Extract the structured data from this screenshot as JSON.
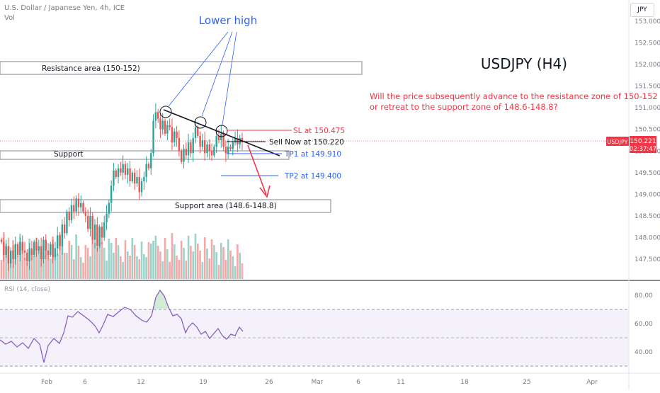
{
  "header": {
    "symbol_line": "U.S. Dollar / Japanese Yen, 4h, ICE",
    "volume_label": "Vol",
    "currency_button": "JPY"
  },
  "annotations": {
    "lower_high": "Lower high",
    "title": "USDJPY (H4)",
    "question_line1": "Will the price subsequently advance to the resistance zone of 150-152",
    "question_line2": "or retreat to the support zone of 148.6-148.8?",
    "resistance_area": "Resistance area (150-152)",
    "support": "Support",
    "support_area": "Support area (148.6-148.8)",
    "sl": "SL at 150.475",
    "sell_now": "Sell Now at 150.220",
    "tp1": "TP1 at 149.910",
    "tp2": "TP2 at 149.400"
  },
  "price_tag": {
    "symbol": "USDJPY",
    "price": "150.221",
    "countdown": "02:37:47"
  },
  "colors": {
    "up": "#26a69a",
    "down": "#ef5350",
    "vol_up": "#9ad3cc",
    "vol_down": "#f4a9a7",
    "blue": "#2962ff",
    "red": "#f23645",
    "rsi_line": "#7e57c2",
    "rsi_fill": "#ede7f6"
  },
  "rsi": {
    "label": "RSI (14, close)",
    "ticks": [
      "80.00",
      "60.00",
      "40.00"
    ]
  },
  "chart_data": {
    "type": "candlestick",
    "price_axis": {
      "ylim": [
        147.2,
        153.2
      ],
      "ticks": [
        "153.000",
        "152.500",
        "152.000",
        "151.500",
        "151.000",
        "150.500",
        "150.000",
        "149.500",
        "149.000",
        "148.500",
        "148.000",
        "147.500"
      ]
    },
    "x_axis": {
      "ticks": [
        "Feb",
        "6",
        "12",
        "19",
        "26",
        "Mar",
        "6",
        "11",
        "18",
        "25",
        "Apr"
      ]
    },
    "levels": {
      "resistance_area": [
        150,
        152
      ],
      "support_area": [
        148.6,
        148.8
      ],
      "sl": 150.475,
      "sell_now": 150.22,
      "tp1": 149.91,
      "tp2": 149.4,
      "last_price": 150.221
    },
    "close": [
      147.9,
      147.6,
      147.8,
      147.4,
      147.7,
      147.5,
      147.85,
      147.6,
      147.9,
      147.7,
      147.65,
      147.45,
      147.75,
      147.6,
      147.9,
      147.7,
      147.8,
      147.5,
      147.95,
      147.7,
      147.6,
      147.85,
      147.55,
      147.75,
      148.05,
      147.8,
      148.3,
      148.1,
      148.6,
      148.4,
      148.75,
      148.6,
      148.9,
      148.7,
      148.8,
      148.6,
      148.5,
      148.2,
      148.5,
      147.95,
      148.3,
      147.8,
      148.25,
      148.0,
      148.35,
      148.55,
      148.8,
      149.2,
      149.55,
      149.4,
      149.6,
      149.5,
      149.7,
      149.45,
      149.6,
      149.3,
      149.5,
      149.25,
      149.4,
      149.05,
      149.3,
      149.4,
      149.7,
      149.6,
      149.95,
      150.7,
      150.9,
      150.75,
      150.5,
      150.7,
      150.4,
      150.6,
      150.55,
      150.2,
      150.45,
      150.3,
      150.0,
      149.75,
      150.05,
      149.9,
      150.2,
      149.95,
      150.3,
      150.55,
      150.35,
      150.1,
      150.25,
      149.95,
      150.15,
      150.0,
      149.9,
      150.1,
      150.35,
      150.25,
      150.4,
      150.1,
      149.95,
      150.1,
      150.05,
      150.2,
      150.3,
      150.15,
      150.3,
      150.22
    ]
  }
}
